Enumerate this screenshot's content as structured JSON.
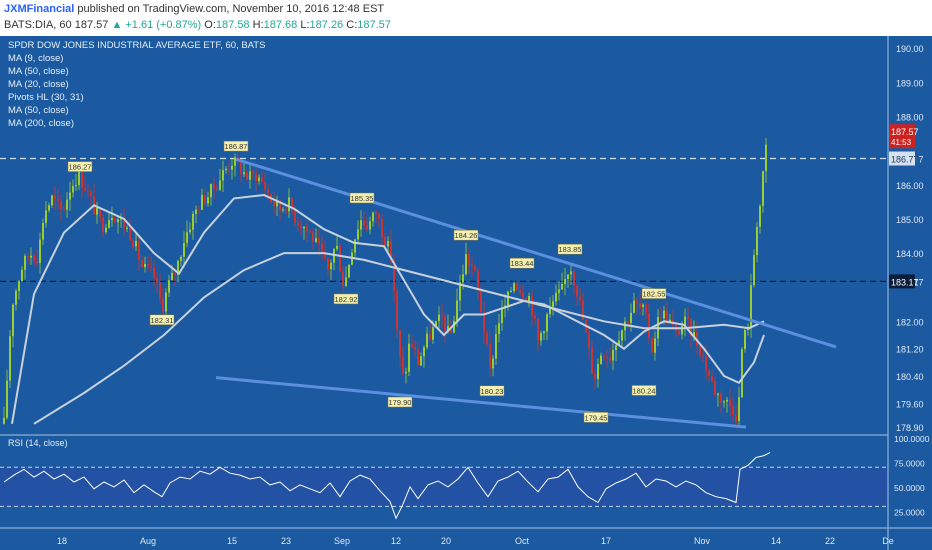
{
  "header": {
    "author": "JXMFinancial",
    "published": "published on TradingView.com, November 10, 2016 12:48 EST",
    "symbol": "BATS:DIA, 60",
    "last": "187.57",
    "change": "▲ +1.61 (+0.87%)",
    "open_label": "O:",
    "open": "187.58",
    "high_label": "H:",
    "high": "187.68",
    "low_label": "L:",
    "low": "187.26",
    "close_label": "C:",
    "close": "187.57"
  },
  "study_legend": [
    "SPDR DOW JONES INDUSTRIAL AVERAGE ETF, 60, BATS",
    "MA (9, close)",
    "MA (50, close)",
    "MA (20, close)",
    "Pivots HL (30, 31)",
    "MA (50, close)",
    "MA (200, close)"
  ],
  "rsi_label": "RSI (14, close)",
  "colors": {
    "background": "#1b5aa0",
    "border": "#0d2a4d",
    "candle_up": "#9acd32",
    "candle_down": "#cc3333",
    "ma_line": "#c8d2dc",
    "trendline": "#5b8fe0",
    "pivot_label_bg": "#f4f0b0",
    "price_tag": "#cc2222",
    "rsi_line": "#ffffff"
  },
  "chart_data": [
    {
      "type": "candlestick",
      "title": "SPDR DOW JONES INDUSTRIAL AVERAGE ETF, 60, BATS",
      "x_ticks": [
        "18",
        "Aug",
        "15",
        "23",
        "Sep",
        "12",
        "20",
        "Oct",
        "17",
        "Nov",
        "14",
        "22",
        "De"
      ],
      "y_ticks": [
        "190.00",
        "189.00",
        "188.00",
        "186.77",
        "186.00",
        "185.00",
        "184.00",
        "183.17",
        "182.00",
        "181.20",
        "180.40",
        "179.60",
        "178.90"
      ],
      "ylim": [
        178.7,
        190.3
      ],
      "grid": false,
      "price_line": {
        "value": 187.57,
        "label": "187.57",
        "countdown": "41:53"
      },
      "horizontal_lines": [
        {
          "value": 186.77,
          "label": "186.77",
          "style": "dashed"
        },
        {
          "value": 183.17,
          "label": "183.17",
          "style": "dashed"
        }
      ],
      "pivot_labels": [
        {
          "text": "186.27",
          "value": 186.27
        },
        {
          "text": "182.31",
          "value": 182.31
        },
        {
          "text": "186.87",
          "value": 186.87
        },
        {
          "text": "182.92",
          "value": 182.92
        },
        {
          "text": "185.35",
          "value": 185.35
        },
        {
          "text": "179.90",
          "value": 179.9
        },
        {
          "text": "184.26",
          "value": 184.26
        },
        {
          "text": "183.44",
          "value": 183.44
        },
        {
          "text": "180.23",
          "value": 180.23
        },
        {
          "text": "183.85",
          "value": 183.85
        },
        {
          "text": "179.45",
          "value": 179.45
        },
        {
          "text": "182.55",
          "value": 182.55
        },
        {
          "text": "180.24",
          "value": 180.24
        }
      ],
      "close_path": [
        [
          0,
          179.0
        ],
        [
          8,
          182.5
        ],
        [
          18,
          183.6
        ],
        [
          26,
          184.0
        ],
        [
          34,
          183.9
        ],
        [
          40,
          185.2
        ],
        [
          48,
          185.6
        ],
        [
          58,
          185.2
        ],
        [
          66,
          185.9
        ],
        [
          74,
          186.3
        ],
        [
          82,
          185.9
        ],
        [
          90,
          185.3
        ],
        [
          98,
          184.8
        ],
        [
          108,
          185.2
        ],
        [
          118,
          184.9
        ],
        [
          128,
          184.5
        ],
        [
          138,
          183.6
        ],
        [
          150,
          183.3
        ],
        [
          158,
          182.4
        ],
        [
          165,
          183.1
        ],
        [
          172,
          183.5
        ],
        [
          180,
          184.4
        ],
        [
          188,
          185.0
        ],
        [
          196,
          185.5
        ],
        [
          204,
          185.7
        ],
        [
          212,
          186.0
        ],
        [
          220,
          186.4
        ],
        [
          228,
          186.7
        ],
        [
          236,
          186.5
        ],
        [
          244,
          186.2
        ],
        [
          252,
          186.3
        ],
        [
          260,
          186.0
        ],
        [
          268,
          185.5
        ],
        [
          276,
          185.3
        ],
        [
          284,
          185.5
        ],
        [
          292,
          185.0
        ],
        [
          300,
          184.8
        ],
        [
          308,
          184.5
        ],
        [
          316,
          184.0
        ],
        [
          324,
          183.5
        ],
        [
          332,
          184.3
        ],
        [
          340,
          183.0
        ],
        [
          348,
          184.2
        ],
        [
          356,
          185.0
        ],
        [
          364,
          184.8
        ],
        [
          372,
          185.2
        ],
        [
          380,
          184.5
        ],
        [
          388,
          183.8
        ],
        [
          394,
          181.2
        ],
        [
          400,
          180.2
        ],
        [
          406,
          181.5
        ],
        [
          414,
          180.8
        ],
        [
          422,
          181.4
        ],
        [
          430,
          181.8
        ],
        [
          438,
          182.1
        ],
        [
          446,
          181.5
        ],
        [
          454,
          182.8
        ],
        [
          462,
          183.9
        ],
        [
          470,
          183.5
        ],
        [
          478,
          182.2
        ],
        [
          486,
          180.5
        ],
        [
          494,
          182.0
        ],
        [
          502,
          182.5
        ],
        [
          510,
          183.2
        ],
        [
          518,
          182.9
        ],
        [
          526,
          182.7
        ],
        [
          534,
          181.4
        ],
        [
          542,
          182.1
        ],
        [
          550,
          182.6
        ],
        [
          558,
          182.9
        ],
        [
          566,
          183.7
        ],
        [
          574,
          182.8
        ],
        [
          582,
          181.6
        ],
        [
          590,
          180.3
        ],
        [
          598,
          181.2
        ],
        [
          606,
          181.0
        ],
        [
          614,
          181.6
        ],
        [
          622,
          182.0
        ],
        [
          630,
          182.5
        ],
        [
          640,
          182.3
        ],
        [
          648,
          181.2
        ],
        [
          656,
          182.3
        ],
        [
          664,
          182.1
        ],
        [
          672,
          181.6
        ],
        [
          680,
          182.0
        ],
        [
          688,
          181.7
        ],
        [
          696,
          181.2
        ],
        [
          704,
          180.5
        ],
        [
          712,
          179.9
        ],
        [
          720,
          179.7
        ],
        [
          728,
          179.5
        ],
        [
          734,
          179.2
        ],
        [
          738,
          181.2
        ],
        [
          744,
          182.0
        ],
        [
          748,
          183.2
        ],
        [
          752,
          184.8
        ],
        [
          756,
          185.4
        ],
        [
          760,
          186.5
        ],
        [
          764,
          187.6
        ]
      ],
      "ma_fast": [
        [
          8,
          179.0
        ],
        [
          30,
          182.8
        ],
        [
          60,
          184.6
        ],
        [
          90,
          185.4
        ],
        [
          120,
          185.0
        ],
        [
          150,
          184.0
        ],
        [
          175,
          183.4
        ],
        [
          200,
          184.6
        ],
        [
          230,
          185.6
        ],
        [
          260,
          185.7
        ],
        [
          290,
          185.3
        ],
        [
          320,
          184.7
        ],
        [
          350,
          184.3
        ],
        [
          380,
          184.2
        ],
        [
          400,
          183.2
        ],
        [
          420,
          182.2
        ],
        [
          440,
          181.6
        ],
        [
          460,
          182.2
        ],
        [
          480,
          182.2
        ],
        [
          500,
          182.4
        ],
        [
          520,
          182.6
        ],
        [
          540,
          182.5
        ],
        [
          560,
          182.2
        ],
        [
          580,
          181.9
        ],
        [
          600,
          181.6
        ],
        [
          620,
          181.2
        ],
        [
          640,
          181.7
        ],
        [
          660,
          182.0
        ],
        [
          680,
          181.9
        ],
        [
          700,
          181.2
        ],
        [
          720,
          180.4
        ],
        [
          735,
          180.2
        ],
        [
          750,
          180.8
        ],
        [
          760,
          181.6
        ]
      ],
      "ma_slow": [
        [
          30,
          179.0
        ],
        [
          80,
          179.9
        ],
        [
          120,
          180.7
        ],
        [
          160,
          181.6
        ],
        [
          200,
          182.7
        ],
        [
          240,
          183.5
        ],
        [
          280,
          184.0
        ],
        [
          320,
          184.0
        ],
        [
          360,
          183.8
        ],
        [
          400,
          183.5
        ],
        [
          440,
          183.2
        ],
        [
          480,
          182.9
        ],
        [
          520,
          182.6
        ],
        [
          560,
          182.3
        ],
        [
          600,
          182.0
        ],
        [
          640,
          181.8
        ],
        [
          680,
          181.8
        ],
        [
          720,
          181.9
        ],
        [
          745,
          181.8
        ],
        [
          760,
          182.0
        ]
      ],
      "trendlines": [
        {
          "from": [
            232,
            186.75
          ],
          "to": [
            832,
            181.25
          ]
        },
        {
          "from": [
            212,
            180.35
          ],
          "to": [
            742,
            178.9
          ]
        }
      ]
    },
    {
      "type": "line",
      "title": "RSI (14, close)",
      "y_ticks": [
        "100.0000",
        "75.0000",
        "50.0000",
        "25.0000"
      ],
      "ylim": [
        10,
        102
      ],
      "bands": [
        70,
        30
      ],
      "values": [
        [
          0,
          55
        ],
        [
          10,
          62
        ],
        [
          20,
          68
        ],
        [
          30,
          60
        ],
        [
          40,
          66
        ],
        [
          50,
          58
        ],
        [
          60,
          63
        ],
        [
          70,
          55
        ],
        [
          80,
          60
        ],
        [
          90,
          48
        ],
        [
          100,
          55
        ],
        [
          110,
          50
        ],
        [
          120,
          57
        ],
        [
          130,
          44
        ],
        [
          140,
          52
        ],
        [
          150,
          45
        ],
        [
          158,
          40
        ],
        [
          166,
          54
        ],
        [
          176,
          60
        ],
        [
          186,
          58
        ],
        [
          196,
          66
        ],
        [
          206,
          63
        ],
        [
          216,
          70
        ],
        [
          226,
          64
        ],
        [
          236,
          62
        ],
        [
          246,
          58
        ],
        [
          256,
          60
        ],
        [
          266,
          52
        ],
        [
          276,
          55
        ],
        [
          286,
          46
        ],
        [
          296,
          52
        ],
        [
          306,
          48
        ],
        [
          316,
          44
        ],
        [
          326,
          54
        ],
        [
          336,
          40
        ],
        [
          346,
          56
        ],
        [
          356,
          62
        ],
        [
          366,
          58
        ],
        [
          376,
          46
        ],
        [
          386,
          35
        ],
        [
          392,
          18
        ],
        [
          398,
          30
        ],
        [
          406,
          50
        ],
        [
          414,
          38
        ],
        [
          424,
          52
        ],
        [
          434,
          56
        ],
        [
          444,
          50
        ],
        [
          454,
          58
        ],
        [
          464,
          70
        ],
        [
          474,
          54
        ],
        [
          484,
          40
        ],
        [
          494,
          56
        ],
        [
          504,
          60
        ],
        [
          514,
          66
        ],
        [
          524,
          55
        ],
        [
          534,
          45
        ],
        [
          544,
          58
        ],
        [
          554,
          60
        ],
        [
          564,
          68
        ],
        [
          574,
          50
        ],
        [
          584,
          40
        ],
        [
          594,
          34
        ],
        [
          602,
          48
        ],
        [
          612,
          54
        ],
        [
          622,
          58
        ],
        [
          632,
          64
        ],
        [
          642,
          50
        ],
        [
          652,
          58
        ],
        [
          662,
          56
        ],
        [
          672,
          50
        ],
        [
          682,
          56
        ],
        [
          692,
          52
        ],
        [
          702,
          44
        ],
        [
          712,
          40
        ],
        [
          722,
          38
        ],
        [
          732,
          34
        ],
        [
          736,
          68
        ],
        [
          744,
          72
        ],
        [
          752,
          80
        ],
        [
          760,
          82
        ],
        [
          766,
          85
        ]
      ]
    }
  ],
  "axes": {
    "date_ticks": [
      "18",
      "Aug",
      "15",
      "23",
      "Sep",
      "12",
      "20",
      "Oct",
      "17",
      "Nov",
      "14",
      "22",
      "De"
    ]
  }
}
